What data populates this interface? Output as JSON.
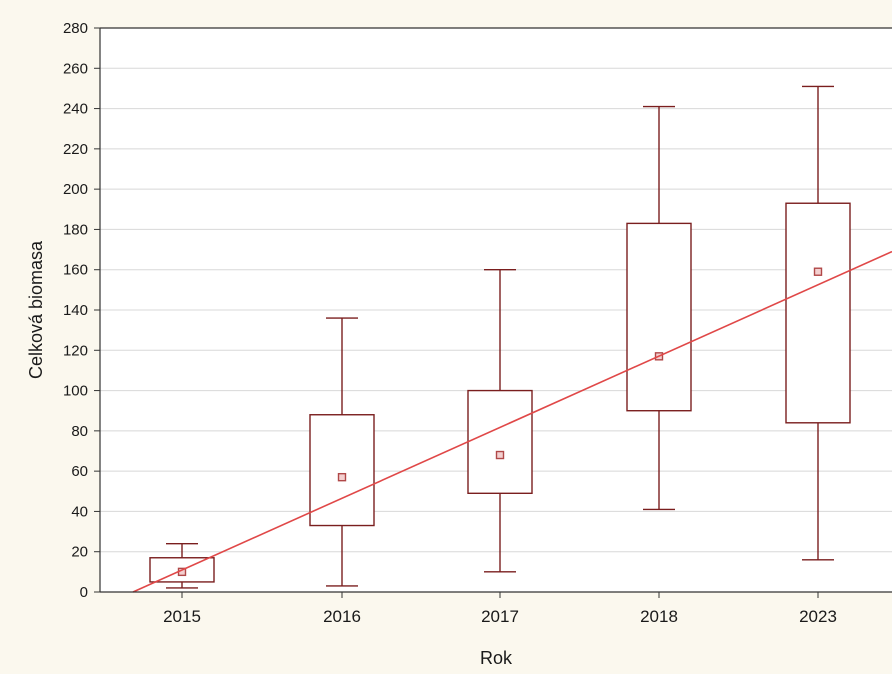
{
  "chart_data": {
    "type": "box",
    "xlabel": "Rok",
    "ylabel": "Celková biomasa",
    "ylim": [
      0,
      280
    ],
    "yticks": [
      0,
      20,
      40,
      60,
      80,
      100,
      120,
      140,
      160,
      180,
      200,
      220,
      240,
      260,
      280
    ],
    "categories": [
      "2015",
      "2016",
      "2017",
      "2018",
      "2023"
    ],
    "boxes": [
      {
        "category": "2015",
        "whisker_low": 2,
        "q1": 5,
        "mean": 10,
        "q3": 17,
        "whisker_high": 24
      },
      {
        "category": "2016",
        "whisker_low": 3,
        "q1": 33,
        "mean": 57,
        "q3": 88,
        "whisker_high": 136
      },
      {
        "category": "2017",
        "whisker_low": 10,
        "q1": 49,
        "mean": 68,
        "q3": 100,
        "whisker_high": 160
      },
      {
        "category": "2018",
        "whisker_low": 41,
        "q1": 90,
        "mean": 117,
        "q3": 183,
        "whisker_high": 241
      },
      {
        "category": "2023",
        "whisker_low": 16,
        "q1": 84,
        "mean": 159,
        "q3": 193,
        "whisker_high": 251
      }
    ],
    "trend_line": {
      "y_at_start": 0,
      "y_at_end": 169
    },
    "grid": true,
    "colors": {
      "box": "#7a1e1e",
      "trend": "#e04848",
      "mean_marker": "#b04848",
      "grid": "#d8d8d8",
      "plot_bg": "#ffffff"
    }
  }
}
